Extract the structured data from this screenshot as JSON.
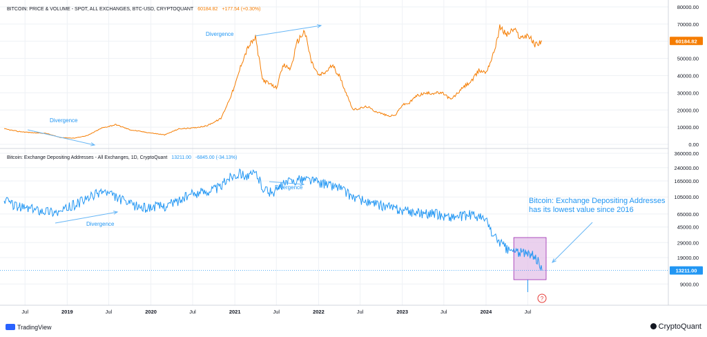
{
  "colors": {
    "price": "#f57c00",
    "addresses": "#2196f3",
    "arrow": "#64b5f6",
    "highlight_fill": "#e1bee7",
    "highlight_stroke": "#9c27b0",
    "marker": "#e53935",
    "grid": "#eef1f5",
    "axis_text": "#131722"
  },
  "top_panel": {
    "title": "BITCOIN: PRICE & VOLUME - SPOT, ALL EXCHANGES, BTC-USD, CRYPTOQUANT",
    "last_value": "60184.82",
    "change": "+177.54 (+0.30%)"
  },
  "bottom_panel": {
    "title": "Bitcoin: Exchange Depositing Addresses - All Exchanges, 1D, CryptoQuant",
    "last_value": "13211.00",
    "change": "-6845.00 (-34.13%)"
  },
  "annotations": {
    "divergence": "Divergence",
    "callout": "Bitcoin: Exchange Depositing Addresses has its lowest value since 2016",
    "marker": "?"
  },
  "footer": {
    "left_logo": "TradingView",
    "right_logo": "CryptoQuant"
  },
  "chart_data": [
    {
      "type": "line",
      "title": "BITCOIN: PRICE & VOLUME - SPOT, ALL EXCHANGES, BTC-USD, CRYPTOQUANT",
      "x_axis": [
        "Jul",
        "2019",
        "Jul",
        "2020",
        "Jul",
        "2021",
        "Jul",
        "2022",
        "Jul",
        "2023",
        "Jul",
        "2024",
        "Jul"
      ],
      "y_ticks": [
        "0.00",
        "10000.00",
        "20000.00",
        "30000.00",
        "40000.00",
        "50000.00",
        "60000.00",
        "70000.00",
        "80000.00"
      ],
      "ylim": [
        0,
        80000
      ],
      "last_label": "60184.82",
      "grid": true,
      "series": [
        {
          "x": [
            "2018-04",
            "2018-06",
            "2018-08",
            "2018-10",
            "2018-12",
            "2019-02",
            "2019-04",
            "2019-06",
            "2019-08",
            "2019-10",
            "2019-12",
            "2020-03",
            "2020-05",
            "2020-07",
            "2020-09",
            "2020-11",
            "2020-12",
            "2021-01",
            "2021-02",
            "2021-03",
            "2021-04",
            "2021-05",
            "2021-06",
            "2021-07",
            "2021-08",
            "2021-09",
            "2021-10",
            "2021-11",
            "2021-12",
            "2022-01",
            "2022-02",
            "2022-03",
            "2022-04",
            "2022-05",
            "2022-06",
            "2022-08",
            "2022-09",
            "2022-11",
            "2022-12",
            "2023-01",
            "2023-02",
            "2023-03",
            "2023-04",
            "2023-06",
            "2023-07",
            "2023-08",
            "2023-10",
            "2023-11",
            "2023-12",
            "2024-01",
            "2024-02",
            "2024-03",
            "2024-04",
            "2024-05",
            "2024-06",
            "2024-07",
            "2024-08",
            "2024-09"
          ],
          "values": [
            9000,
            7500,
            6800,
            6400,
            4000,
            3600,
            5200,
            9500,
            11500,
            8500,
            7200,
            5500,
            9000,
            9500,
            10800,
            15000,
            24000,
            34000,
            48000,
            57000,
            62000,
            38000,
            35000,
            33000,
            46000,
            44000,
            60000,
            66000,
            48000,
            40000,
            42000,
            46000,
            40000,
            30000,
            20000,
            22000,
            19500,
            16500,
            16800,
            23000,
            24000,
            28000,
            29500,
            30000,
            29500,
            26000,
            34000,
            37000,
            43000,
            42000,
            52000,
            68000,
            64000,
            67000,
            62000,
            64000,
            58000,
            60184.82
          ]
        }
      ]
    },
    {
      "type": "line",
      "title": "Bitcoin: Exchange Depositing Addresses - All Exchanges, 1D, CryptoQuant",
      "scale": "log",
      "x_axis": [
        "Jul",
        "2019",
        "Jul",
        "2020",
        "Jul",
        "2021",
        "Jul",
        "2022",
        "Jul",
        "2023",
        "Jul",
        "2024",
        "Jul"
      ],
      "y_ticks": [
        "9000.00",
        "19000.00",
        "29000.00",
        "45000.00",
        "65000.00",
        "105000.00",
        "165000.00",
        "240000.00",
        "360000.00"
      ],
      "ylim": [
        6500,
        360000
      ],
      "last_label": "13211.00",
      "grid": true,
      "series": [
        {
          "x": [
            "2018-04",
            "2018-06",
            "2018-08",
            "2018-10",
            "2018-12",
            "2019-02",
            "2019-04",
            "2019-06",
            "2019-08",
            "2019-10",
            "2019-12",
            "2020-03",
            "2020-05",
            "2020-07",
            "2020-09",
            "2020-11",
            "2020-12",
            "2021-01",
            "2021-02",
            "2021-03",
            "2021-04",
            "2021-05",
            "2021-06",
            "2021-07",
            "2021-08",
            "2021-09",
            "2021-10",
            "2021-11",
            "2021-12",
            "2022-01",
            "2022-02",
            "2022-03",
            "2022-04",
            "2022-05",
            "2022-06",
            "2022-08",
            "2022-09",
            "2022-11",
            "2022-12",
            "2023-01",
            "2023-02",
            "2023-03",
            "2023-04",
            "2023-06",
            "2023-07",
            "2023-08",
            "2023-10",
            "2023-11",
            "2023-12",
            "2024-01",
            "2024-02",
            "2024-03",
            "2024-04",
            "2024-05",
            "2024-06",
            "2024-07",
            "2024-08",
            "2024-09"
          ],
          "values": [
            95000,
            80000,
            75000,
            72000,
            68000,
            85000,
            100000,
            125000,
            105000,
            85000,
            78000,
            82000,
            95000,
            115000,
            125000,
            140000,
            180000,
            200000,
            205000,
            185000,
            210000,
            140000,
            120000,
            125000,
            150000,
            165000,
            170000,
            175000,
            170000,
            160000,
            150000,
            145000,
            140000,
            120000,
            105000,
            90000,
            85000,
            80000,
            75000,
            72000,
            70000,
            68000,
            67000,
            65000,
            62000,
            60000,
            62000,
            65000,
            60000,
            55000,
            35000,
            30000,
            24000,
            23000,
            22000,
            21000,
            20000,
            13211
          ]
        }
      ]
    }
  ]
}
